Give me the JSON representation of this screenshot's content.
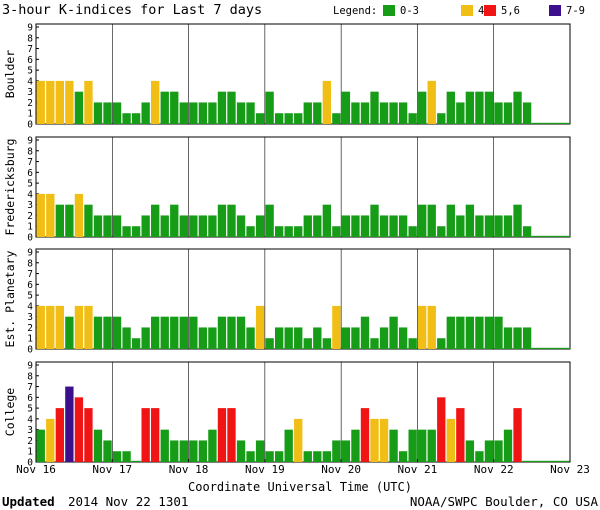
{
  "title": "3-hour K-indices for Last 7 days",
  "legend": {
    "label": "Legend:",
    "items": [
      {
        "label": "0-3",
        "color": "#169c16"
      },
      {
        "label": "4",
        "color": "#f0be14"
      },
      {
        "label": "5,6",
        "color": "#f01414"
      },
      {
        "label": "7-9",
        "color": "#3c0f8c"
      }
    ]
  },
  "xlabel": "Coordinate Universal Time (UTC)",
  "footer": {
    "updated_label": "Updated",
    "updated_value": "2014 Nov 22 1301",
    "source": "NOAA/SWPC Boulder, CO USA"
  },
  "chart_data": {
    "type": "bar",
    "x_ticks": [
      "Nov 16",
      "Nov 17",
      "Nov 18",
      "Nov 19",
      "Nov 20",
      "Nov 21",
      "Nov 22",
      "Nov 23"
    ],
    "ylim": [
      0,
      9
    ],
    "y_ticks": [
      0,
      1,
      2,
      3,
      4,
      5,
      6,
      7,
      8,
      9
    ],
    "panels": [
      {
        "name": "Boulder",
        "values": [
          4,
          4,
          4,
          4,
          3,
          4,
          2,
          2,
          2,
          1,
          1,
          2,
          4,
          3,
          3,
          2,
          2,
          2,
          2,
          3,
          3,
          2,
          2,
          1,
          3,
          1,
          1,
          1,
          2,
          2,
          4,
          1,
          3,
          2,
          2,
          3,
          2,
          2,
          2,
          1,
          3,
          4,
          1,
          3,
          2,
          3,
          3,
          3,
          2,
          2,
          3,
          2,
          0,
          0,
          0,
          0
        ]
      },
      {
        "name": "Fredericksburg",
        "values": [
          4,
          4,
          3,
          3,
          4,
          3,
          2,
          2,
          2,
          1,
          1,
          2,
          3,
          2,
          3,
          2,
          2,
          2,
          2,
          3,
          3,
          2,
          1,
          2,
          3,
          1,
          1,
          1,
          2,
          2,
          3,
          1,
          2,
          2,
          2,
          3,
          2,
          2,
          2,
          1,
          3,
          3,
          1,
          3,
          2,
          3,
          2,
          2,
          2,
          2,
          3,
          1,
          0,
          0,
          0,
          0
        ]
      },
      {
        "name": "Est. Planetary",
        "values": [
          4,
          4,
          4,
          3,
          4,
          4,
          3,
          3,
          3,
          2,
          1,
          2,
          3,
          3,
          3,
          3,
          3,
          2,
          2,
          3,
          3,
          3,
          2,
          4,
          1,
          2,
          2,
          2,
          1,
          2,
          1,
          4,
          2,
          2,
          3,
          1,
          2,
          3,
          2,
          1,
          4,
          4,
          1,
          3,
          3,
          3,
          3,
          3,
          3,
          2,
          2,
          2,
          0,
          0,
          0,
          0
        ]
      },
      {
        "name": "College",
        "values": [
          3,
          4,
          5,
          7,
          6,
          5,
          3,
          2,
          1,
          1,
          0,
          5,
          5,
          3,
          2,
          2,
          2,
          2,
          3,
          5,
          5,
          2,
          1,
          2,
          1,
          1,
          3,
          4,
          1,
          1,
          1,
          2,
          2,
          3,
          5,
          4,
          4,
          3,
          1,
          3,
          3,
          3,
          6,
          4,
          5,
          2,
          1,
          2,
          2,
          3,
          5,
          0,
          0,
          0,
          0,
          0
        ]
      }
    ]
  }
}
